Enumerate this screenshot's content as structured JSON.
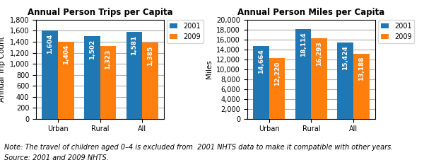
{
  "chart_data": [
    {
      "type": "bar",
      "title": "Annual Person Trips per Capita",
      "ylabel": "Annual Trip Count",
      "categories": [
        "Urban",
        "Rural",
        "All"
      ],
      "series": [
        {
          "name": "2001",
          "values": [
            1604,
            1502,
            1581
          ],
          "value_labels": [
            "1,604",
            "1,502",
            "1,581"
          ]
        },
        {
          "name": "2009",
          "values": [
            1404,
            1323,
            1385
          ],
          "value_labels": [
            "1,404",
            "1,323",
            "1,385"
          ]
        }
      ],
      "ylim": [
        0,
        1800
      ],
      "yticks": [
        0,
        200,
        400,
        600,
        800,
        {
          "value": 1000,
          "label": "1,000"
        },
        {
          "value": 1200,
          "label": "1,200"
        },
        {
          "value": 1400,
          "label": "1,400"
        },
        {
          "value": 1600,
          "label": "1,600"
        },
        {
          "value": 1800,
          "label": "1,800"
        }
      ],
      "grid": true,
      "legend": "upper right",
      "data_labels": true
    },
    {
      "type": "bar",
      "title": "Annual Person Miles per Capita",
      "ylabel": "Miles",
      "categories": [
        "Urban",
        "Rural",
        "All"
      ],
      "series": [
        {
          "name": "2001",
          "values": [
            14664,
            18114,
            15424
          ],
          "value_labels": [
            "14,664",
            "18,114",
            "15,424"
          ]
        },
        {
          "name": "2009",
          "values": [
            12220,
            16293,
            13188
          ],
          "value_labels": [
            "12,220",
            "16,293",
            "13,188"
          ]
        }
      ],
      "ylim": [
        0,
        20000
      ],
      "yticks": [
        0,
        {
          "value": 2000,
          "label": "2,000"
        },
        {
          "value": 4000,
          "label": "4,000"
        },
        {
          "value": 6000,
          "label": "6,000"
        },
        {
          "value": 8000,
          "label": "8,000"
        },
        {
          "value": 10000,
          "label": "10,000"
        },
        {
          "value": 12000,
          "label": "12,000"
        },
        {
          "value": 14000,
          "label": "14,000"
        },
        {
          "value": 16000,
          "label": "16,000"
        },
        {
          "value": 18000,
          "label": "18,000"
        },
        {
          "value": 20000,
          "label": "20,000"
        }
      ],
      "grid": true,
      "legend": "upper right",
      "data_labels": true
    }
  ],
  "annotations": [
    "Note: The travel of children aged 0–4 is excluded from  2001 NHTS data to make it compatible with other years.",
    "Source: 2001 and 2009 NHTS."
  ]
}
